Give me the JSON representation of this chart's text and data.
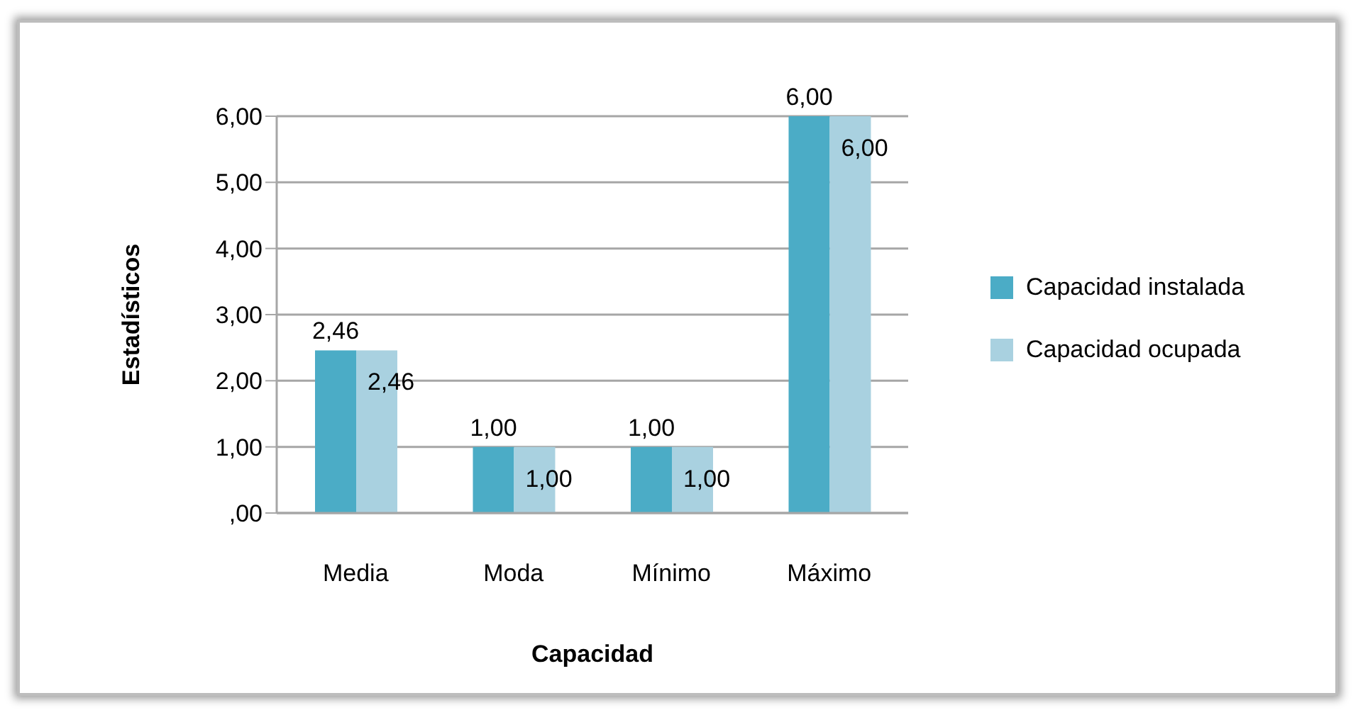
{
  "chart_data": {
    "type": "bar",
    "xlabel": "Capacidad",
    "ylabel": "Estadísticos",
    "categories": [
      "Media",
      "Moda",
      "Mínimo",
      "Máximo"
    ],
    "series": [
      {
        "name": "Capacidad instalada",
        "color": "#4bacc6",
        "values": [
          2.46,
          1,
          1,
          6
        ],
        "value_labels": [
          "2,46",
          "1,00",
          "1,00",
          "6,00"
        ]
      },
      {
        "name": "Capacidad ocupada",
        "color": "#a9d1e0",
        "values": [
          2.46,
          1,
          1,
          6
        ],
        "value_labels": [
          "2,46",
          "1,00",
          "1,00",
          "6,00"
        ]
      }
    ],
    "ylim": [
      0,
      6
    ],
    "yticks": [
      {
        "value": 0,
        "label": ",00"
      },
      {
        "value": 1,
        "label": "1,00"
      },
      {
        "value": 2,
        "label": "2,00"
      },
      {
        "value": 3,
        "label": "3,00"
      },
      {
        "value": 4,
        "label": "4,00"
      },
      {
        "value": 5,
        "label": "5,00"
      },
      {
        "value": 6,
        "label": "6,00"
      }
    ],
    "grid": "y",
    "legend": "right"
  }
}
